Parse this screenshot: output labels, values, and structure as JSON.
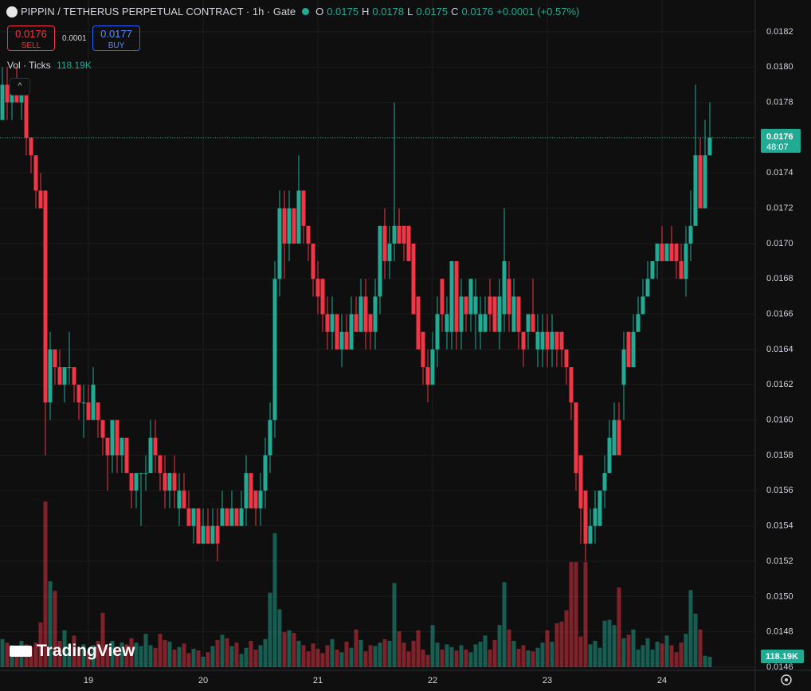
{
  "header": {
    "symbol": "PIPPIN / TETHERUS PERPETUAL CONTRACT · 1h · Gate",
    "o": "O",
    "open": "0.0175",
    "h": "H",
    "high": "0.0178",
    "l": "L",
    "low": "0.0175",
    "c": "C",
    "close": "0.0176",
    "change": "+0.0001 (+0.57%)"
  },
  "trade": {
    "sell_price": "0.0176",
    "sell_label": "SELL",
    "spread": "0.0001",
    "buy_price": "0.0177",
    "buy_label": "BUY"
  },
  "volume_legend": {
    "name": "Vol · Ticks",
    "value": "118.19K"
  },
  "countdown": "48:07",
  "logo": "TradingView",
  "chart_data": {
    "type": "candlestick",
    "categories": [
      null,
      null,
      null,
      null,
      null,
      null,
      null,
      null,
      null,
      null,
      null,
      null,
      null,
      null,
      null,
      null,
      null,
      null,
      "19",
      null,
      null,
      null,
      null,
      null,
      null,
      null,
      null,
      null,
      null,
      null,
      null,
      null,
      null,
      null,
      null,
      null,
      null,
      null,
      null,
      null,
      null,
      null,
      "20",
      null,
      null,
      null,
      null,
      null,
      null,
      null,
      null,
      null,
      null,
      null,
      null,
      null,
      null,
      null,
      null,
      null,
      null,
      null,
      null,
      null,
      null,
      null,
      "21",
      null,
      null,
      null,
      null,
      null,
      null,
      null,
      null,
      null,
      null,
      null,
      null,
      null,
      null,
      null,
      null,
      null,
      null,
      null,
      null,
      null,
      null,
      null,
      "22",
      null,
      null,
      null,
      null,
      null,
      null,
      null,
      null,
      null,
      null,
      null,
      null,
      null,
      null,
      null,
      null,
      null,
      null,
      null,
      null,
      null,
      null,
      null,
      "23",
      null,
      null,
      null,
      null,
      null,
      null,
      null,
      null,
      null,
      null,
      null,
      null,
      null,
      null,
      null,
      null,
      null,
      null,
      null,
      null,
      null,
      null,
      null,
      "24",
      null,
      null,
      null,
      null,
      null,
      null,
      null,
      null,
      null,
      null
    ],
    "open": [
      0.0177,
      0.0179,
      0.0178,
      0.0179,
      0.0178,
      0.0179,
      0.0176,
      0.0175,
      0.0173,
      0.0173,
      0.0161,
      0.0164,
      0.0163,
      0.0162,
      0.0163,
      0.0163,
      0.0162,
      0.0161,
      0.0161,
      0.016,
      0.0161,
      0.016,
      0.0159,
      0.0158,
      0.016,
      0.0158,
      0.0159,
      0.0157,
      0.0156,
      0.0157,
      0.0157,
      0.0157,
      0.0159,
      0.0158,
      0.0157,
      0.0156,
      0.0157,
      0.0155,
      0.0156,
      0.0155,
      0.0154,
      0.0155,
      0.0153,
      0.0154,
      0.0153,
      0.0154,
      0.0154,
      0.0155,
      0.0154,
      0.0155,
      0.0154,
      0.0155,
      0.0157,
      0.0156,
      0.0155,
      0.0156,
      0.0158,
      0.016,
      0.0168,
      0.0172,
      0.017,
      0.0172,
      0.017,
      0.0173,
      0.0171,
      0.017,
      0.0168,
      0.0168,
      0.0166,
      0.0165,
      0.0166,
      0.0164,
      0.0165,
      0.0164,
      0.0166,
      0.0165,
      0.0167,
      0.0166,
      0.0165,
      0.0167,
      0.0171,
      0.0169,
      0.017,
      0.0171,
      0.0171,
      0.0171,
      0.017,
      0.0167,
      0.0165,
      0.0163,
      0.0162,
      0.0164,
      0.0168,
      0.0165,
      0.0165,
      0.0169,
      0.0165,
      0.0167,
      0.0166,
      0.0166,
      0.0165,
      0.0165,
      0.0167,
      0.0167,
      0.0165,
      0.0166,
      0.0168,
      0.0165,
      0.0167,
      0.0165,
      0.0165,
      0.0166,
      0.0164,
      0.0164,
      0.0165,
      0.0164,
      0.0165,
      0.0165,
      0.0164,
      0.0163,
      0.0161,
      0.0158,
      0.0156,
      0.0153,
      0.0154,
      0.0154,
      0.0156,
      0.0157,
      0.0158,
      0.016,
      0.0162,
      0.0165,
      0.0163,
      0.0165,
      0.0166,
      0.0167,
      0.0168,
      0.0169,
      0.017,
      0.0169,
      0.017,
      0.017,
      0.0169,
      0.0168,
      0.017,
      0.0171,
      0.0175,
      0.0172,
      0.0175
    ],
    "high": [
      0.018,
      0.018,
      0.0179,
      0.018,
      0.0179,
      0.0179,
      0.0176,
      0.0175,
      0.0174,
      0.0173,
      0.0165,
      0.0164,
      0.0164,
      0.0163,
      0.0165,
      0.0163,
      0.0162,
      0.0162,
      0.0162,
      0.0163,
      0.0161,
      0.016,
      0.0159,
      0.016,
      0.016,
      0.0159,
      0.0159,
      0.0157,
      0.0157,
      0.0157,
      0.0158,
      0.016,
      0.016,
      0.0158,
      0.0158,
      0.0157,
      0.0158,
      0.0157,
      0.0157,
      0.0156,
      0.0155,
      0.0155,
      0.0155,
      0.0155,
      0.0155,
      0.0155,
      0.0156,
      0.0155,
      0.0156,
      0.0155,
      0.0156,
      0.0158,
      0.0157,
      0.0156,
      0.0157,
      0.0159,
      0.0161,
      0.0169,
      0.0173,
      0.0173,
      0.0173,
      0.0172,
      0.0175,
      0.0173,
      0.0171,
      0.017,
      0.0169,
      0.0168,
      0.0167,
      0.0167,
      0.0166,
      0.0166,
      0.0166,
      0.0167,
      0.0167,
      0.0168,
      0.0168,
      0.0166,
      0.0168,
      0.0171,
      0.0172,
      0.0171,
      0.0178,
      0.0172,
      0.0171,
      0.0171,
      0.017,
      0.0167,
      0.0165,
      0.0164,
      0.0165,
      0.0167,
      0.0168,
      0.0167,
      0.0169,
      0.0169,
      0.0168,
      0.0167,
      0.0168,
      0.0168,
      0.0167,
      0.0167,
      0.0168,
      0.0167,
      0.0168,
      0.0172,
      0.0169,
      0.0168,
      0.0167,
      0.0165,
      0.0166,
      0.0168,
      0.0166,
      0.0166,
      0.0166,
      0.0166,
      0.0165,
      0.0165,
      0.0164,
      0.0163,
      0.0161,
      0.0158,
      0.0156,
      0.0155,
      0.0156,
      0.0156,
      0.0158,
      0.016,
      0.0161,
      0.0161,
      0.0165,
      0.0165,
      0.0166,
      0.0167,
      0.0168,
      0.0169,
      0.0169,
      0.017,
      0.0171,
      0.017,
      0.0171,
      0.017,
      0.017,
      0.0171,
      0.0173,
      0.0179,
      0.0176,
      0.0177,
      0.0178
    ],
    "low": [
      0.0177,
      0.0177,
      0.0177,
      0.0178,
      0.0177,
      0.0175,
      0.0174,
      0.0172,
      0.0172,
      0.0158,
      0.016,
      0.0162,
      0.0162,
      0.0161,
      0.0162,
      0.0161,
      0.016,
      0.0159,
      0.016,
      0.016,
      0.0159,
      0.0158,
      0.0156,
      0.0157,
      0.0157,
      0.0157,
      0.0157,
      0.0155,
      0.0155,
      0.0154,
      0.0156,
      0.0157,
      0.0157,
      0.0156,
      0.0155,
      0.0155,
      0.0155,
      0.0154,
      0.0155,
      0.0154,
      0.0153,
      0.0153,
      0.0153,
      0.0153,
      0.0153,
      0.0152,
      0.0154,
      0.0154,
      0.0154,
      0.0154,
      0.0154,
      0.0154,
      0.0155,
      0.0154,
      0.0154,
      0.0155,
      0.0157,
      0.0159,
      0.0167,
      0.0168,
      0.0169,
      0.017,
      0.017,
      0.017,
      0.0169,
      0.0167,
      0.0166,
      0.0165,
      0.0164,
      0.0164,
      0.0164,
      0.0163,
      0.0164,
      0.0164,
      0.0165,
      0.0165,
      0.0164,
      0.0164,
      0.0164,
      0.0166,
      0.0168,
      0.0168,
      0.0169,
      0.017,
      0.0169,
      0.0169,
      0.0166,
      0.0164,
      0.0162,
      0.0161,
      0.0162,
      0.0163,
      0.0165,
      0.0164,
      0.0164,
      0.0164,
      0.0164,
      0.0165,
      0.0165,
      0.0164,
      0.0164,
      0.0165,
      0.0165,
      0.0165,
      0.0164,
      0.0165,
      0.0165,
      0.0165,
      0.0164,
      0.0163,
      0.0164,
      0.0165,
      0.0163,
      0.0163,
      0.0163,
      0.0163,
      0.0163,
      0.0163,
      0.0162,
      0.016,
      0.0156,
      0.0153,
      0.0152,
      0.0153,
      0.0153,
      0.0154,
      0.0155,
      0.0157,
      0.0158,
      0.0158,
      0.016,
      0.0163,
      0.0163,
      0.0165,
      0.0166,
      0.0167,
      0.0168,
      0.0168,
      0.0169,
      0.0169,
      0.0169,
      0.0168,
      0.0168,
      0.0167,
      0.0169,
      0.0171,
      0.0172,
      0.0172,
      0.0175
    ],
    "close": [
      0.0179,
      0.0178,
      0.0179,
      0.0178,
      0.0179,
      0.0176,
      0.0175,
      0.0173,
      0.0172,
      0.0161,
      0.0164,
      0.0163,
      0.0162,
      0.0163,
      0.0163,
      0.0162,
      0.0161,
      0.0161,
      0.016,
      0.0162,
      0.016,
      0.0159,
      0.0158,
      0.016,
      0.0158,
      0.0159,
      0.0157,
      0.0156,
      0.0157,
      0.0157,
      0.0157,
      0.0159,
      0.0158,
      0.0157,
      0.0156,
      0.0157,
      0.0156,
      0.0156,
      0.0155,
      0.0154,
      0.0155,
      0.0153,
      0.0154,
      0.0153,
      0.0154,
      0.0153,
      0.0155,
      0.0154,
      0.0155,
      0.0154,
      0.0155,
      0.0157,
      0.0155,
      0.0155,
      0.0156,
      0.0158,
      0.016,
      0.0168,
      0.0172,
      0.017,
      0.0172,
      0.017,
      0.0173,
      0.0171,
      0.017,
      0.0168,
      0.0167,
      0.0166,
      0.0165,
      0.0166,
      0.0164,
      0.0165,
      0.0164,
      0.0166,
      0.0165,
      0.0167,
      0.0165,
      0.0165,
      0.0167,
      0.0171,
      0.0169,
      0.017,
      0.0171,
      0.017,
      0.017,
      0.0169,
      0.0166,
      0.0164,
      0.0163,
      0.0162,
      0.0164,
      0.0166,
      0.0166,
      0.0166,
      0.0169,
      0.0165,
      0.0167,
      0.0166,
      0.0168,
      0.0167,
      0.0166,
      0.0166,
      0.0166,
      0.0165,
      0.0167,
      0.0169,
      0.0166,
      0.0167,
      0.0165,
      0.0164,
      0.0166,
      0.0165,
      0.0165,
      0.0165,
      0.0164,
      0.0165,
      0.0164,
      0.0164,
      0.0163,
      0.0161,
      0.0157,
      0.0155,
      0.0153,
      0.0154,
      0.0155,
      0.0156,
      0.0157,
      0.0159,
      0.016,
      0.0158,
      0.0164,
      0.0163,
      0.0165,
      0.0166,
      0.0167,
      0.0168,
      0.0169,
      0.017,
      0.0169,
      0.017,
      0.0169,
      0.0169,
      0.0168,
      0.017,
      0.0171,
      0.0175,
      0.0172,
      0.0175,
      0.0176
    ],
    "volume": [
      320000,
      280000,
      250000,
      220000,
      300000,
      260000,
      230000,
      280000,
      510000,
      1890000,
      980000,
      870000,
      300000,
      420000,
      250000,
      360000,
      220000,
      260000,
      180000,
      250000,
      300000,
      620000,
      220000,
      300000,
      200000,
      280000,
      260000,
      330000,
      280000,
      240000,
      380000,
      250000,
      220000,
      380000,
      310000,
      290000,
      200000,
      230000,
      270000,
      160000,
      210000,
      190000,
      120000,
      170000,
      240000,
      310000,
      370000,
      330000,
      240000,
      280000,
      150000,
      220000,
      300000,
      200000,
      250000,
      320000,
      850000,
      1530000,
      660000,
      400000,
      420000,
      390000,
      300000,
      250000,
      180000,
      270000,
      210000,
      160000,
      250000,
      320000,
      200000,
      170000,
      290000,
      220000,
      430000,
      310000,
      180000,
      250000,
      240000,
      280000,
      320000,
      300000,
      960000,
      410000,
      280000,
      180000,
      300000,
      420000,
      200000,
      140000,
      480000,
      280000,
      200000,
      260000,
      230000,
      190000,
      250000,
      200000,
      170000,
      260000,
      290000,
      360000,
      200000,
      310000,
      480000,
      970000,
      430000,
      300000,
      210000,
      250000,
      190000,
      180000,
      220000,
      280000,
      420000,
      290000,
      500000,
      520000,
      650000,
      1200000,
      1200000,
      350000,
      1200000,
      260000,
      300000,
      220000,
      530000,
      540000,
      480000,
      910000,
      330000,
      370000,
      430000,
      200000,
      250000,
      330000,
      200000,
      290000,
      270000,
      360000,
      250000,
      170000,
      280000,
      380000,
      880000,
      610000,
      430000,
      130000,
      118190
    ],
    "up_color": "#22ab94",
    "down_color": "#f23645",
    "ylim": [
      0.014555,
      0.01838
    ],
    "yticks": [
      {
        "value": 0.0182,
        "label": "0.0182"
      },
      {
        "value": 0.018,
        "label": "0.0180"
      },
      {
        "value": 0.0178,
        "label": "0.0178"
      },
      {
        "value": 0.0176,
        "label": "0.0176"
      },
      {
        "value": 0.0174,
        "label": "0.0174"
      },
      {
        "value": 0.0172,
        "label": "0.0172"
      },
      {
        "value": 0.017,
        "label": "0.0170"
      },
      {
        "value": 0.0168,
        "label": "0.0168"
      },
      {
        "value": 0.0166,
        "label": "0.0166"
      },
      {
        "value": 0.0164,
        "label": "0.0164"
      },
      {
        "value": 0.0162,
        "label": "0.0162"
      },
      {
        "value": 0.016,
        "label": "0.0160"
      },
      {
        "value": 0.0158,
        "label": "0.0158"
      },
      {
        "value": 0.0156,
        "label": "0.0156"
      },
      {
        "value": 0.0154,
        "label": "0.0154"
      },
      {
        "value": 0.0152,
        "label": "0.0152"
      },
      {
        "value": 0.015,
        "label": "0.0150"
      },
      {
        "value": 0.0148,
        "label": "0.0148"
      },
      {
        "value": 0.0146,
        "label": "0.0146"
      }
    ],
    "volume_lim": [
      0,
      2000000
    ],
    "grid": true
  }
}
